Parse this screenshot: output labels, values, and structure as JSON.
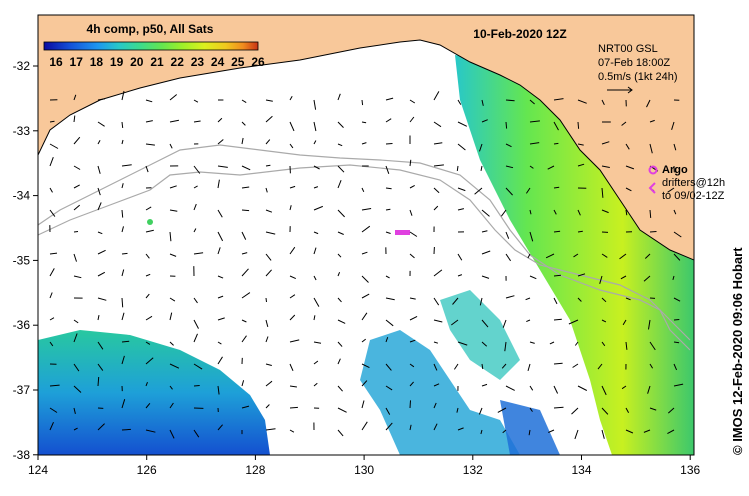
{
  "legend": {
    "title": "4h comp, p50, All Sats",
    "ticks": [
      "16",
      "17",
      "18",
      "19",
      "20",
      "21",
      "22",
      "23",
      "24",
      "25",
      "26"
    ],
    "colors": [
      "#0a0aa0",
      "#1450d8",
      "#1e96f0",
      "#28c8c8",
      "#3cdc8c",
      "#64e650",
      "#a0f028",
      "#dcf01e",
      "#f0c81e",
      "#f08c1e",
      "#c83214"
    ]
  },
  "header": {
    "date": "10-Feb-2020 12Z",
    "current_source": "NRT00 GSL",
    "current_time": "07-Feb 18:00Z",
    "scale": "0.5m/s (1kt 24h)"
  },
  "argo": {
    "label": "Argo",
    "drifters_line1": "drifters@12h",
    "drifters_line2": "to 09/02-12Z"
  },
  "credit": "© IMOS 12-Feb-2020 09:06 Hobart",
  "axes": {
    "lon_ticks": [
      "124",
      "126",
      "128",
      "130",
      "132",
      "134",
      "136"
    ],
    "lat_ticks": [
      "-32",
      "-33",
      "-34",
      "-35",
      "-36",
      "-37",
      "-38"
    ]
  },
  "colors": {
    "land": "#f8c89a",
    "ocean": "#ffffff",
    "coast": "#000000",
    "bathy": "#aaaaaa",
    "argo": "#e040e0"
  }
}
